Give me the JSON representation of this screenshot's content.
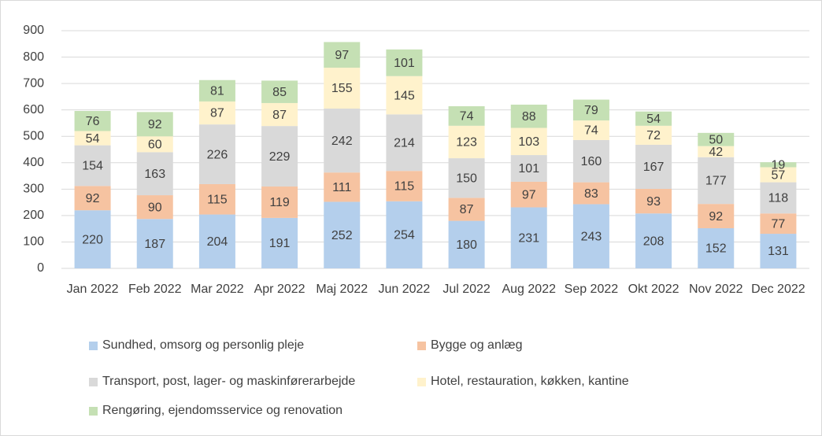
{
  "chart_data": {
    "type": "stacked_bar",
    "categories": [
      "Jan 2022",
      "Feb 2022",
      "Mar 2022",
      "Apr 2022",
      "Maj 2022",
      "Jun 2022",
      "Jul 2022",
      "Aug 2022",
      "Sep 2022",
      "Okt 2022",
      "Nov 2022",
      "Dec 2022"
    ],
    "series": [
      {
        "name": "Sundhed, omsorg og personlig pleje",
        "color": "#b4cfec",
        "values": [
          220,
          187,
          204,
          191,
          252,
          254,
          180,
          231,
          243,
          208,
          152,
          131
        ]
      },
      {
        "name": "Bygge og anlæg",
        "color": "#f6c3a1",
        "values": [
          92,
          90,
          115,
          119,
          111,
          115,
          87,
          97,
          83,
          93,
          92,
          77
        ]
      },
      {
        "name": "Transport, post, lager- og maskinførerarbejde",
        "color": "#d9d9d9",
        "values": [
          154,
          163,
          226,
          229,
          242,
          214,
          150,
          101,
          160,
          167,
          177,
          118
        ]
      },
      {
        "name": "Hotel, restauration, køkken, kantine",
        "color": "#fff2cc",
        "values": [
          54,
          60,
          87,
          87,
          155,
          145,
          123,
          103,
          74,
          72,
          42,
          57
        ]
      },
      {
        "name": "Rengøring, ejendomsservice og renovation",
        "color": "#c5e0b4",
        "values": [
          76,
          92,
          81,
          85,
          97,
          101,
          74,
          88,
          79,
          54,
          50,
          19
        ]
      }
    ],
    "ylim": [
      0,
      900
    ],
    "yticks": [
      0,
      100,
      200,
      300,
      400,
      500,
      600,
      700,
      800,
      900
    ],
    "grid": true,
    "legend": "bottom"
  }
}
